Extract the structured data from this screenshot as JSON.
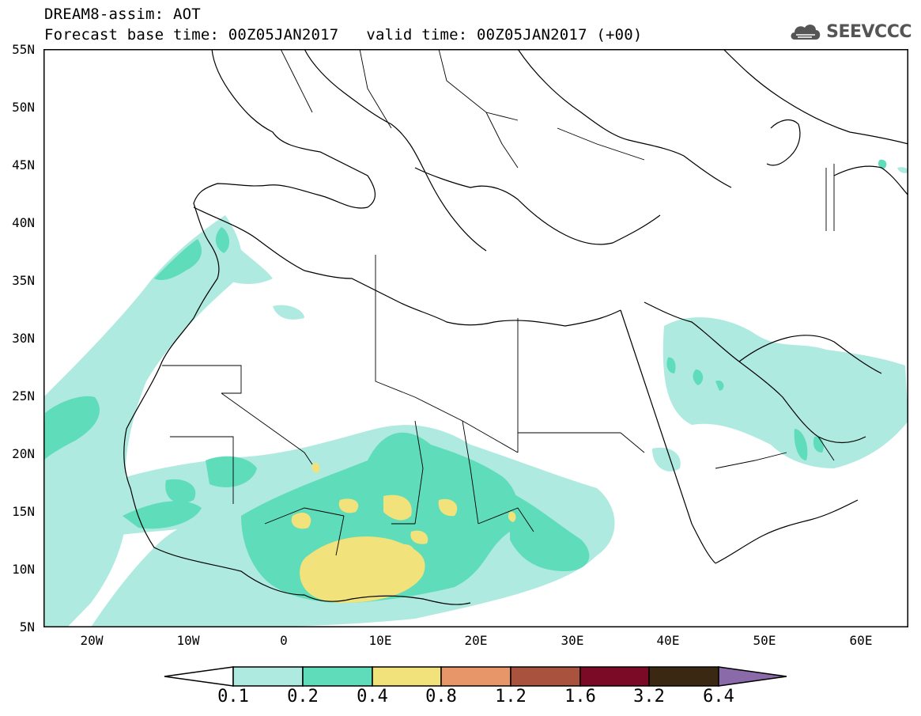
{
  "header": {
    "title_line1": "DREAM8-assim: AOT",
    "base_time": "Forecast base time: 00Z05JAN2017",
    "valid_time": "valid time: 00Z05JAN2017 (+00)",
    "logo_text": "SEEVCCC"
  },
  "map": {
    "projection": "lat-lon",
    "lon_range": [
      "25W",
      "65E"
    ],
    "lat_range": [
      "5N",
      "55N"
    ],
    "y_labels": [
      "55N",
      "50N",
      "45N",
      "40N",
      "35N",
      "30N",
      "25N",
      "20N",
      "15N",
      "10N",
      "5N"
    ],
    "x_labels": [
      "20W",
      "10W",
      "0",
      "10E",
      "20E",
      "30E",
      "40E",
      "50E",
      "60E"
    ],
    "field": "aerosol optical thickness",
    "frame_color": "#000000",
    "coast_color": "#000000"
  },
  "colorbar": {
    "labels": [
      "0.1",
      "0.2",
      "0.4",
      "0.8",
      "1.2",
      "1.6",
      "3.2",
      "6.4"
    ],
    "colors": [
      "#ffffff",
      "#aeeae0",
      "#5fdcb9",
      "#f2e27b",
      "#e69669",
      "#a9533e",
      "#7a0a26",
      "#3a2813",
      "#8a6aa9"
    ]
  }
}
